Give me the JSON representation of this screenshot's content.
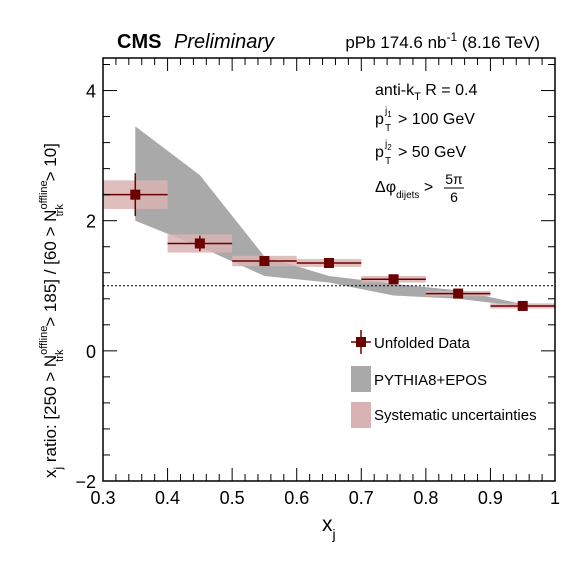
{
  "header": {
    "experiment": "CMS",
    "status": "Preliminary",
    "dataset_prefix": "pPb 174.6 nb",
    "dataset_sup": "-1",
    "dataset_suffix": " (8.16 TeV)"
  },
  "annotations": {
    "algo_main": "anti-k",
    "algo_sub": "T",
    "algo_rest": " R = 0.4",
    "pt1_main": "p",
    "pt1_sup": "j",
    "pt1_supsub": "1",
    "pt1_sub": "T",
    "pt1_rest": " > 100 GeV",
    "pt2_main": "p",
    "pt2_sup": "j",
    "pt2_supsub": "2",
    "pt2_sub": "T",
    "pt2_rest": " > 50 GeV",
    "dphi_main": "Δφ",
    "dphi_sub": "dijets",
    "dphi_gt": " > ",
    "dphi_num": "5π",
    "dphi_den": "6"
  },
  "axes": {
    "xlabel_main": "x",
    "xlabel_sub": "j",
    "ylabel": {
      "p1": "x",
      "p1_sub": "j",
      "p2": " ratio: [250 > N",
      "p2_sup": "offline",
      "p2_sub": "trk",
      "p3": " > 185] / [60 > N",
      "p3_sup": "offline",
      "p3_sub": "trk",
      "p4": " > 10]"
    },
    "x_ticks": [
      "0.3",
      "0.4",
      "0.5",
      "0.6",
      "0.7",
      "0.8",
      "0.9",
      "1"
    ],
    "y_ticks": [
      "−2",
      "0",
      "2",
      "4"
    ]
  },
  "legend": {
    "data": "Unfolded Data",
    "mc": "PYTHIA8+EPOS",
    "syst": "Systematic uncertainties"
  },
  "colors": {
    "data": "#6b0000",
    "mc_band": "#a9a9a9",
    "syst": "#d9b3b3"
  },
  "chart_data": {
    "type": "scatter",
    "xlim": [
      0.3,
      1.0
    ],
    "ylim": [
      -2,
      4.5
    ],
    "reference_line_y": 1.0,
    "series": [
      {
        "name": "Unfolded Data",
        "x": [
          0.35,
          0.45,
          0.55,
          0.65,
          0.75,
          0.85,
          0.95
        ],
        "x_halfwidth": [
          0.05,
          0.05,
          0.05,
          0.05,
          0.05,
          0.05,
          0.05
        ],
        "y": [
          2.4,
          1.65,
          1.38,
          1.35,
          1.1,
          0.88,
          0.69
        ],
        "stat_err": [
          0.33,
          0.12,
          0.05,
          0.04,
          0.04,
          0.03,
          0.03
        ],
        "syst_err": [
          0.22,
          0.14,
          0.08,
          0.06,
          0.05,
          0.04,
          0.04
        ]
      },
      {
        "name": "PYTHIA8+EPOS",
        "x": [
          0.35,
          0.45,
          0.55,
          0.65,
          0.75,
          0.85,
          0.95
        ],
        "y_low": [
          2.0,
          1.6,
          1.15,
          1.05,
          0.85,
          0.8,
          0.68
        ],
        "y_high": [
          3.45,
          2.7,
          1.45,
          1.15,
          1.03,
          0.93,
          0.72
        ]
      },
      {
        "name": "Systematic uncertainties"
      }
    ]
  }
}
